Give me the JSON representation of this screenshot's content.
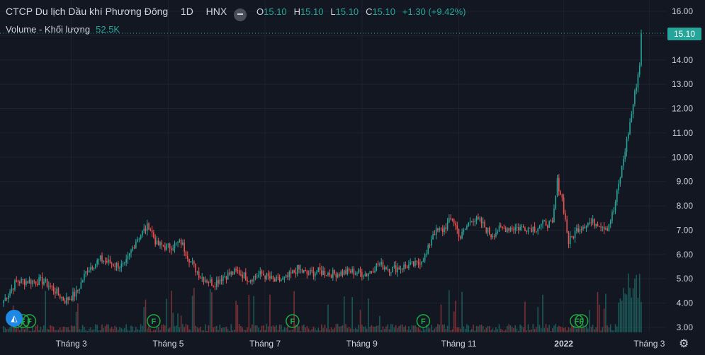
{
  "header": {
    "symbol_name": "CTCP Du lịch Dầu khí Phương Đông",
    "interval": "1D",
    "exchange": "HNX",
    "ohlc": {
      "o_label": "O",
      "o_value": "15.10",
      "h_label": "H",
      "h_value": "15.10",
      "l_label": "L",
      "l_value": "15.10",
      "c_label": "C",
      "c_value": "15.10",
      "change": "+1.30 (+9.42%)"
    }
  },
  "volume_legend": {
    "label": "Volume - Khối lượng",
    "value": "52.5K"
  },
  "last_price_label": "15.10",
  "colors": {
    "up": "#26a69a",
    "down": "#ef5350",
    "background": "#131722",
    "grid": "#1e222d",
    "text": "#d1d4dc",
    "event": "#22ab42"
  },
  "icons": {
    "logo": "tradingview-logo-icon",
    "settings": "gear-icon",
    "collapse": "minus-icon"
  },
  "chart_data": {
    "type": "candlestick",
    "y_axis": {
      "min": 3.0,
      "max": 16.0,
      "ticks": [
        "16.00",
        "15.00",
        "14.00",
        "13.00",
        "12.00",
        "11.00",
        "10.00",
        "9.00",
        "8.00",
        "7.00",
        "6.00",
        "5.00",
        "4.00",
        "3.00"
      ]
    },
    "x_axis": {
      "ticks": [
        "Tháng 3",
        "Tháng 5",
        "Tháng 7",
        "Tháng 9",
        "Tháng 11",
        "2022",
        "Tháng 3"
      ],
      "tick_days": [
        42,
        102,
        162,
        222,
        282,
        347,
        400
      ]
    },
    "events": [
      {
        "day": 8,
        "label": "F"
      },
      {
        "day": 12,
        "label": "F"
      },
      {
        "day": 16,
        "label": "F"
      },
      {
        "day": 93,
        "label": "F"
      },
      {
        "day": 179,
        "label": "F"
      },
      {
        "day": 260,
        "label": "F"
      },
      {
        "day": 355,
        "label": "F"
      },
      {
        "day": 358,
        "label": "F"
      }
    ],
    "last_price": 15.1,
    "anchors": [
      [
        0,
        4.1
      ],
      [
        8,
        4.9
      ],
      [
        15,
        4.9
      ],
      [
        25,
        4.9
      ],
      [
        32,
        4.5
      ],
      [
        38,
        4.1
      ],
      [
        45,
        4.4
      ],
      [
        52,
        5.4
      ],
      [
        60,
        5.8
      ],
      [
        68,
        5.6
      ],
      [
        75,
        5.5
      ],
      [
        82,
        6.6
      ],
      [
        90,
        7.2
      ],
      [
        95,
        6.4
      ],
      [
        102,
        6.3
      ],
      [
        110,
        6.5
      ],
      [
        116,
        5.7
      ],
      [
        122,
        5.1
      ],
      [
        130,
        4.8
      ],
      [
        136,
        5.1
      ],
      [
        145,
        5.3
      ],
      [
        152,
        5.0
      ],
      [
        160,
        5.2
      ],
      [
        168,
        4.9
      ],
      [
        175,
        5.0
      ],
      [
        182,
        5.4
      ],
      [
        188,
        5.2
      ],
      [
        195,
        5.3
      ],
      [
        204,
        5.2
      ],
      [
        215,
        5.3
      ],
      [
        225,
        5.2
      ],
      [
        232,
        5.6
      ],
      [
        240,
        5.4
      ],
      [
        248,
        5.5
      ],
      [
        256,
        5.6
      ],
      [
        262,
        6.0
      ],
      [
        266,
        6.9
      ],
      [
        272,
        7.0
      ],
      [
        278,
        7.5
      ],
      [
        283,
        6.7
      ],
      [
        290,
        7.5
      ],
      [
        296,
        7.3
      ],
      [
        302,
        6.8
      ],
      [
        306,
        7.0
      ],
      [
        312,
        7.1
      ],
      [
        320,
        7.1
      ],
      [
        330,
        7.1
      ],
      [
        336,
        7.3
      ],
      [
        340,
        7.2
      ],
      [
        343,
        9.0
      ],
      [
        346,
        8.3
      ],
      [
        350,
        6.5
      ],
      [
        356,
        7.1
      ],
      [
        362,
        7.3
      ],
      [
        368,
        7.3
      ],
      [
        374,
        7.1
      ],
      [
        378,
        7.8
      ],
      [
        382,
        9.2
      ],
      [
        385,
        10.3
      ],
      [
        388,
        11.4
      ],
      [
        391,
        12.6
      ],
      [
        394,
        13.8
      ],
      [
        395,
        15.1
      ]
    ]
  }
}
